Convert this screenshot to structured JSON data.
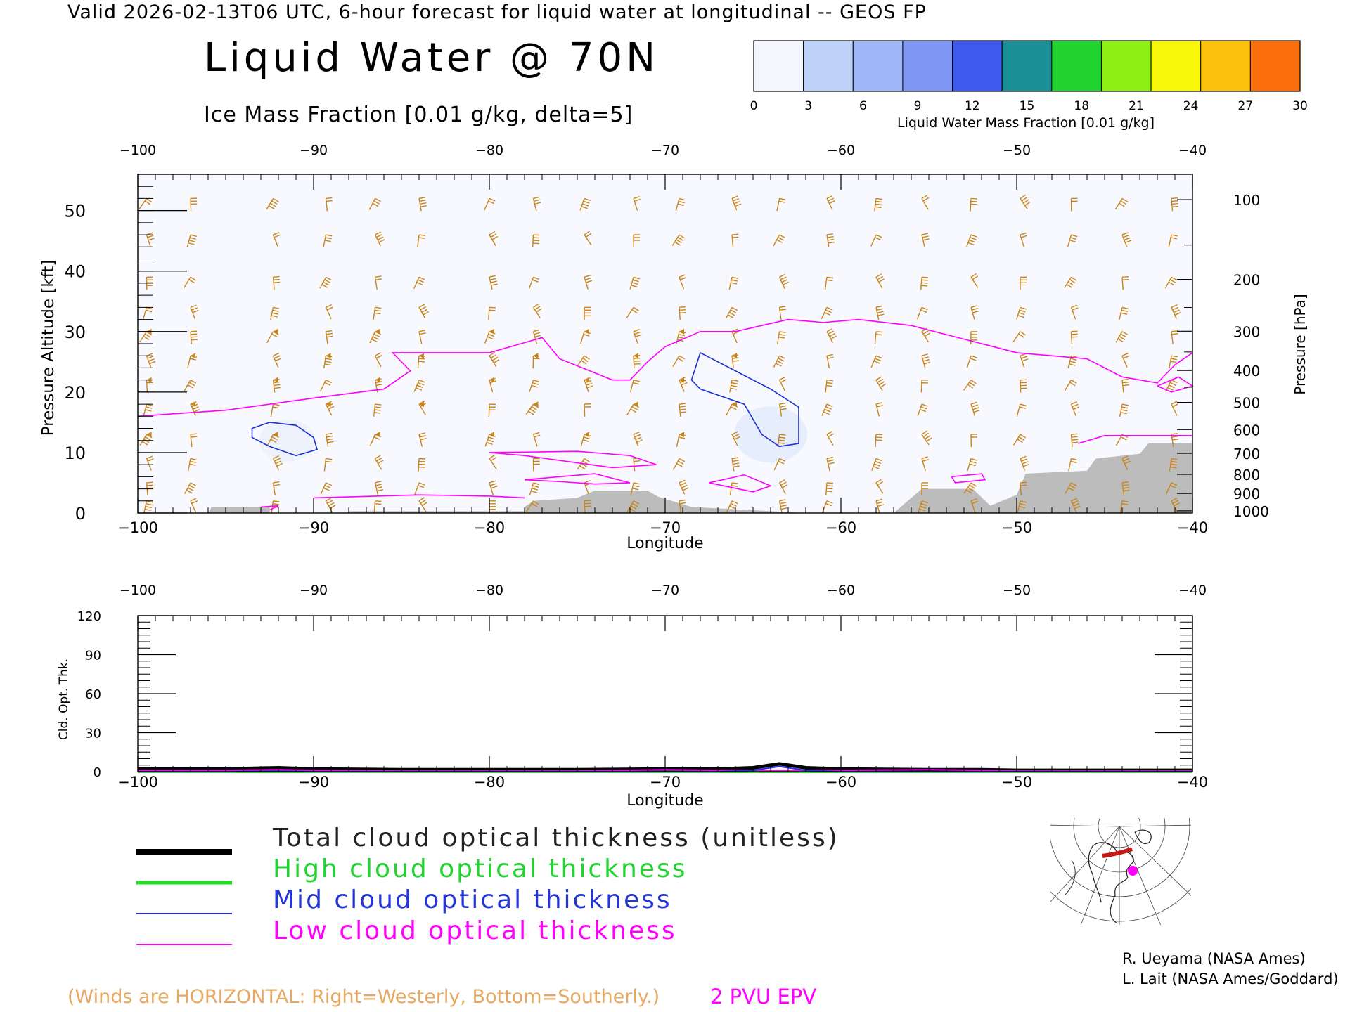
{
  "header": "Valid 2026-02-13T06 UTC, 6-hour forecast for liquid water at longitudinal -- GEOS FP",
  "title": "Liquid Water @ 70N",
  "ice_label": "Ice Mass Fraction [0.01 g/kg, delta=5]",
  "colorbar": {
    "label": "Liquid Water Mass Fraction [0.01 g/kg]",
    "ticks": [
      "0",
      "3",
      "6",
      "9",
      "12",
      "15",
      "18",
      "21",
      "24",
      "27",
      "30"
    ],
    "colors": [
      "#f0f4fc",
      "#bcd0f8",
      "#9fb8f7",
      "#7e97f5",
      "#3e59ee",
      "#1a8f96",
      "#22d430",
      "#8cf016",
      "#f7f709",
      "#fbbf0d",
      "#fa6f0b"
    ]
  },
  "colors": {
    "wind_barb": "#c8851c",
    "ice_contour": "#1c2fd4",
    "epv_contour": "#ff00ff",
    "terrain": "#bcbcbc",
    "total_line": "#000000",
    "high_line": "#20e020",
    "mid_line": "#2030d8",
    "low_line": "#ff00ff"
  },
  "top_panel": {
    "xlabel": "Longitude",
    "ylabel_left": "Pressure Altitude [kft]",
    "ylabel_right": "Pressure [hPa]",
    "x_ticks": [
      "-100",
      "-90",
      "-80",
      "-70",
      "-60",
      "-50",
      "-40"
    ],
    "y_ticks_left": [
      "0",
      "10",
      "20",
      "30",
      "40",
      "50"
    ],
    "y_ticks_right": [
      "100",
      "200",
      "300",
      "400",
      "500",
      "600",
      "700",
      "800",
      "900",
      "1000"
    ]
  },
  "bottom_panel": {
    "xlabel": "Longitude",
    "ylabel": "Cld. Opt. Thk.",
    "x_ticks": [
      "-100",
      "-90",
      "-80",
      "-70",
      "-60",
      "-50",
      "-40"
    ],
    "y_ticks": [
      "0",
      "30",
      "60",
      "90",
      "120"
    ]
  },
  "legend": {
    "total": "Total cloud optical thickness (unitless)",
    "high": "High cloud optical thickness",
    "mid": "Mid cloud optical thickness",
    "low": "Low cloud optical thickness"
  },
  "winds_note": "(Winds are HORIZONTAL: Right=Westerly, Bottom=Southerly.)",
  "pvu_label": "2 PVU EPV",
  "credits": [
    "R. Ueyama (NASA Ames)",
    "L. Lait (NASA Ames/Goddard)"
  ],
  "chart_data": [
    {
      "type": "area",
      "title": "Liquid Water @ 70N",
      "xlabel": "Longitude",
      "ylabel": "Pressure Altitude [kft]",
      "xlim": [
        -100,
        -40
      ],
      "ylim": [
        0,
        56
      ],
      "epv_2pvu_kft": {
        "x": [
          -100,
          -95,
          -90,
          -86,
          -85,
          -84.5,
          -85.5,
          -80,
          -77,
          -76,
          -73,
          -72,
          -71,
          -70,
          -68,
          -66,
          -63,
          -61,
          -59,
          -56,
          -54,
          -52,
          -50,
          -46,
          -44,
          -42,
          -41,
          -40
        ],
        "y": [
          16,
          17,
          19,
          20.5,
          22.5,
          23.5,
          26.5,
          26.5,
          29,
          25.5,
          22,
          22,
          25,
          27.5,
          30,
          30,
          32,
          31.5,
          32,
          31,
          29.5,
          28,
          26.5,
          25.5,
          22.5,
          21.5,
          24.5,
          26.5
        ]
      },
      "ice_contours_kft": [
        {
          "x": [
            -93.5,
            -92.5,
            -91,
            -90,
            -89.8,
            -91,
            -92.5,
            -93.5
          ],
          "y": [
            14,
            15,
            14.5,
            12.5,
            10.5,
            9.5,
            11,
            12.5
          ]
        },
        {
          "x": [
            -68.5,
            -68,
            -66,
            -64,
            -62.4,
            -62.4,
            -63.5,
            -64.5,
            -65.5,
            -68,
            -68.5
          ],
          "y": [
            22,
            26.5,
            23.5,
            20.5,
            17.5,
            11.5,
            11,
            13,
            18,
            20.5,
            22
          ]
        }
      ],
      "terrain_kft": {
        "x": [
          -100,
          -96,
          -95.8,
          -92.5,
          -92.5,
          -88,
          -88,
          -78,
          -78,
          -77.5,
          -75,
          -74,
          -71,
          -70.4,
          -68.5,
          -62,
          -59,
          -57,
          -55.4,
          -52.5,
          -51.5,
          -50,
          -49.5,
          -46,
          -45.5,
          -43,
          -42.5,
          -40
        ],
        "y": [
          0,
          0,
          1,
          1,
          0,
          0,
          0.3,
          0.3,
          1,
          2,
          2.5,
          3.7,
          3.7,
          2.7,
          1,
          0,
          0,
          0,
          4,
          4,
          1.2,
          3,
          6.5,
          7,
          9,
          9.8,
          11.5,
          11.5
        ]
      },
      "liquid_water_max": 3
    },
    {
      "type": "line",
      "xlabel": "Longitude",
      "ylabel": "Cld. Opt. Thk.",
      "xlim": [
        -100,
        -40
      ],
      "ylim": [
        0,
        120
      ],
      "x": [
        -100,
        -95,
        -92,
        -90,
        -85,
        -80,
        -75,
        -70,
        -67,
        -65,
        -63.5,
        -62,
        -60,
        -55,
        -52,
        -50,
        -45,
        -40
      ],
      "series": [
        {
          "name": "Total cloud optical thickness (unitless)",
          "values": [
            2,
            2,
            3,
            2,
            1.5,
            1.5,
            1.5,
            2,
            2,
            3,
            6,
            3,
            2,
            1.5,
            1.5,
            1,
            1,
            1
          ]
        },
        {
          "name": "High cloud optical thickness",
          "values": [
            0,
            0,
            0,
            0,
            0,
            0,
            0,
            0,
            0,
            0,
            0,
            0,
            0,
            0,
            0,
            0,
            0,
            0
          ]
        },
        {
          "name": "Mid cloud optical thickness",
          "values": [
            0,
            0,
            0.5,
            0,
            0,
            0,
            0,
            0,
            0,
            1,
            4,
            1,
            0,
            0,
            0,
            0,
            0,
            0
          ]
        },
        {
          "name": "Low cloud optical thickness",
          "values": [
            1,
            1,
            1.5,
            1,
            0.5,
            0.5,
            0.5,
            1.5,
            1,
            1,
            1,
            1,
            1,
            1.5,
            1,
            0.5,
            0.5,
            0.5
          ]
        }
      ]
    }
  ]
}
